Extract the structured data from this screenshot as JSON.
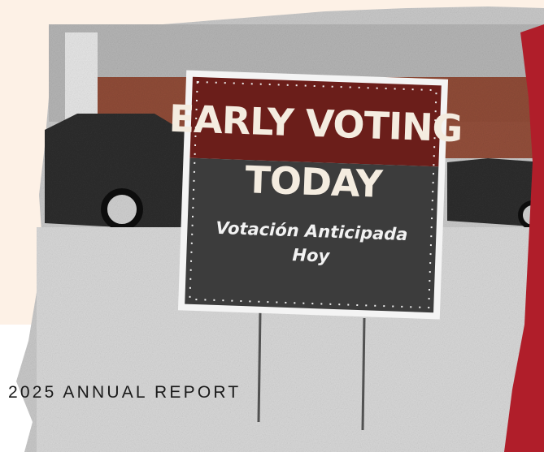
{
  "sign": {
    "headline": [
      "EARLY VOTING",
      "TODAY"
    ],
    "subline": [
      "Votación Anticipada",
      "Hoy"
    ]
  },
  "footer": {
    "title": "2025 ANNUAL REPORT"
  }
}
